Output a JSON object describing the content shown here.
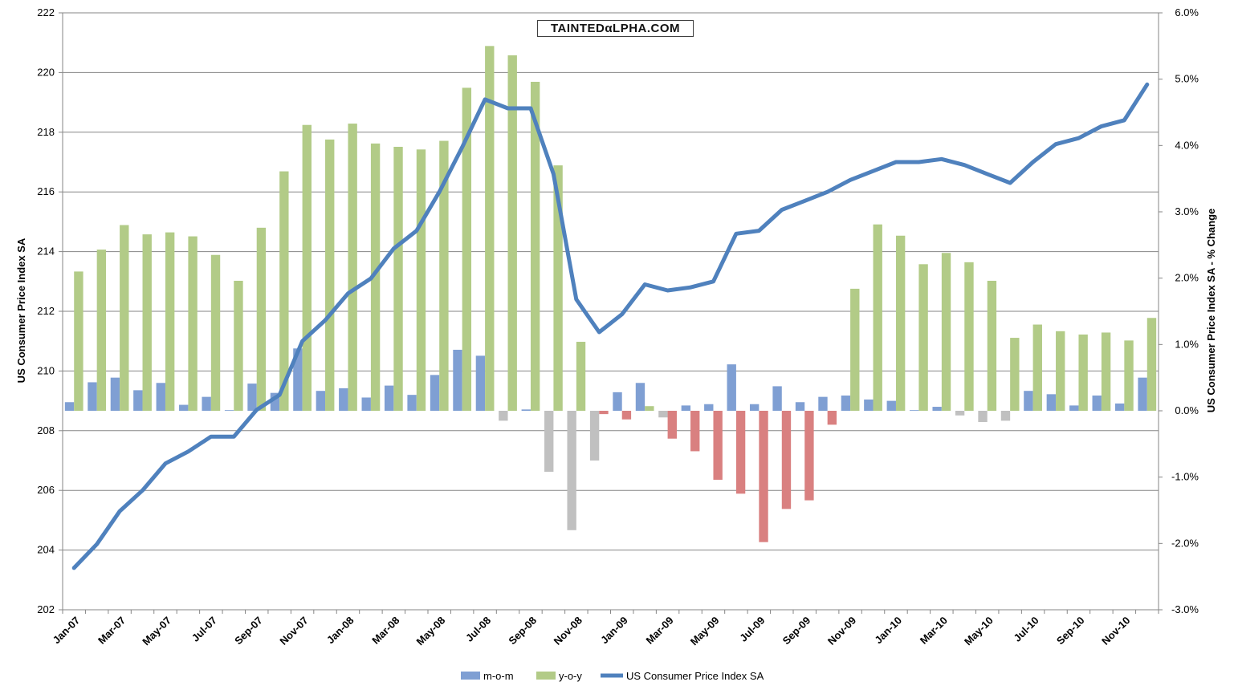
{
  "watermark": "TAINTEDαLPHA.COM",
  "colors": {
    "mom": "#7f9fd3",
    "yoy": "#b2cb87",
    "index_line": "#4f81bd",
    "negative_mom": "#c0c0c0",
    "negative_yoy": "#d98080",
    "grid": "#868686"
  },
  "chart_data": {
    "type": "bar",
    "title": "",
    "ylabel_left": "US Consumer Price Index SA",
    "ylabel_right": "US Consumer Price Index SA - % Change",
    "ylim_left": [
      202,
      222
    ],
    "ylim_right": [
      -3.0,
      6.0
    ],
    "yticks_left": [
      "202",
      "204",
      "206",
      "208",
      "210",
      "212",
      "214",
      "216",
      "218",
      "220",
      "222"
    ],
    "yticks_right": [
      "-3.0%",
      "-2.0%",
      "-1.0%",
      "0.0%",
      "1.0%",
      "2.0%",
      "3.0%",
      "4.0%",
      "5.0%",
      "6.0%"
    ],
    "legend_position": "bottom",
    "grid": true,
    "categories": [
      "Jan-07",
      "Feb-07",
      "Mar-07",
      "Apr-07",
      "May-07",
      "Jun-07",
      "Jul-07",
      "Aug-07",
      "Sep-07",
      "Oct-07",
      "Nov-07",
      "Dec-07",
      "Jan-08",
      "Feb-08",
      "Mar-08",
      "Apr-08",
      "May-08",
      "Jun-08",
      "Jul-08",
      "Aug-08",
      "Sep-08",
      "Oct-08",
      "Nov-08",
      "Dec-08",
      "Jan-09",
      "Feb-09",
      "Mar-09",
      "Apr-09",
      "May-09",
      "Jun-09",
      "Jul-09",
      "Aug-09",
      "Sep-09",
      "Oct-09",
      "Nov-09",
      "Dec-09",
      "Jan-10",
      "Feb-10",
      "Mar-10",
      "Apr-10",
      "May-10",
      "Jun-10",
      "Jul-10",
      "Aug-10",
      "Sep-10",
      "Oct-10",
      "Nov-10",
      "Dec-10"
    ],
    "xtick_labels": [
      "Jan-07",
      "Mar-07",
      "May-07",
      "Jul-07",
      "Sep-07",
      "Nov-07",
      "Jan-08",
      "Mar-08",
      "May-08",
      "Jul-08",
      "Sep-08",
      "Nov-08",
      "Jan-09",
      "Mar-09",
      "May-09",
      "Jul-09",
      "Sep-09",
      "Nov-09",
      "Jan-10",
      "Mar-10",
      "May-10",
      "Jul-10",
      "Sep-10",
      "Nov-10"
    ],
    "series": [
      {
        "name": "m-o-m",
        "type": "bar",
        "axis": "right",
        "values": [
          0.13,
          0.43,
          0.5,
          0.31,
          0.42,
          0.09,
          0.21,
          0.01,
          0.41,
          0.27,
          0.94,
          0.3,
          0.34,
          0.2,
          0.38,
          0.24,
          0.54,
          0.92,
          0.83,
          -0.15,
          0.02,
          -0.92,
          -1.8,
          -0.75,
          0.28,
          0.42,
          -0.1,
          0.08,
          0.1,
          0.7,
          0.1,
          0.37,
          0.13,
          0.21,
          0.23,
          0.17,
          0.15,
          0.01,
          0.06,
          -0.07,
          -0.17,
          -0.15,
          0.3,
          0.25,
          0.08,
          0.23,
          0.11,
          0.5
        ]
      },
      {
        "name": "y-o-y",
        "type": "bar",
        "axis": "right",
        "values": [
          2.1,
          2.43,
          2.8,
          2.66,
          2.69,
          2.63,
          2.35,
          1.96,
          2.76,
          3.61,
          4.31,
          4.09,
          4.33,
          4.03,
          3.98,
          3.94,
          4.07,
          4.87,
          5.5,
          5.36,
          4.96,
          3.7,
          1.04,
          -0.05,
          -0.13,
          0.07,
          -0.42,
          -0.61,
          -1.04,
          -1.25,
          -1.98,
          -1.48,
          -1.35,
          -0.21,
          1.84,
          2.81,
          2.64,
          2.21,
          2.38,
          2.24,
          1.96,
          1.1,
          1.3,
          1.2,
          1.15,
          1.18,
          1.06,
          1.4
        ]
      },
      {
        "name": "US Consumer Price Index SA",
        "type": "line",
        "axis": "left",
        "values": [
          203.4,
          204.2,
          205.3,
          206.0,
          206.9,
          207.3,
          207.8,
          207.8,
          208.7,
          209.2,
          211.0,
          211.7,
          212.6,
          213.1,
          214.1,
          214.7,
          216.0,
          217.5,
          219.1,
          218.8,
          218.8,
          216.6,
          212.4,
          211.3,
          211.9,
          212.9,
          212.7,
          212.8,
          213.0,
          214.6,
          214.7,
          215.4,
          215.7,
          216.0,
          216.4,
          216.7,
          217.0,
          217.0,
          217.1,
          216.9,
          216.6,
          216.3,
          217.0,
          217.6,
          217.8,
          218.2,
          218.4,
          219.6
        ]
      }
    ]
  }
}
